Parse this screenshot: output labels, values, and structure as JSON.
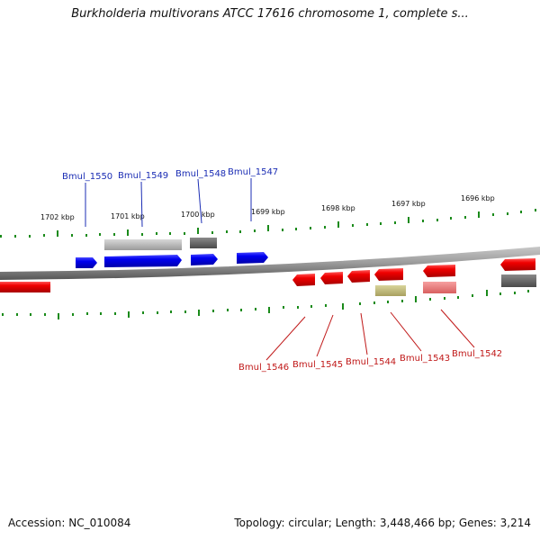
{
  "title": "Burkholderia multivorans ATCC 17616 chromosome 1, complete s...",
  "accession": "Accession: NC_010084",
  "stats": "Topology: circular; Length: 3,448,466 bp; Genes: 3,214",
  "colors": {
    "forward_gene": "#0000ee",
    "reverse_gene": "#ee0000",
    "forward_label": "#1b2db4",
    "reverse_label": "#c01818",
    "tick": "#1a8a1a",
    "backbone": "#888888"
  },
  "scale_labels": [
    "1702 kbp",
    "1701 kbp",
    "1700 kbp",
    "1699 kbp",
    "1698 kbp",
    "1697 kbp",
    "1696 kbp"
  ],
  "forward_gene_labels": [
    "Bmul_1550",
    "Bmul_1549",
    "Bmul_1548",
    "Bmul_1547"
  ],
  "reverse_gene_labels": [
    "Bmul_1546",
    "Bmul_1545",
    "Bmul_1544",
    "Bmul_1543",
    "Bmul_1542"
  ]
}
